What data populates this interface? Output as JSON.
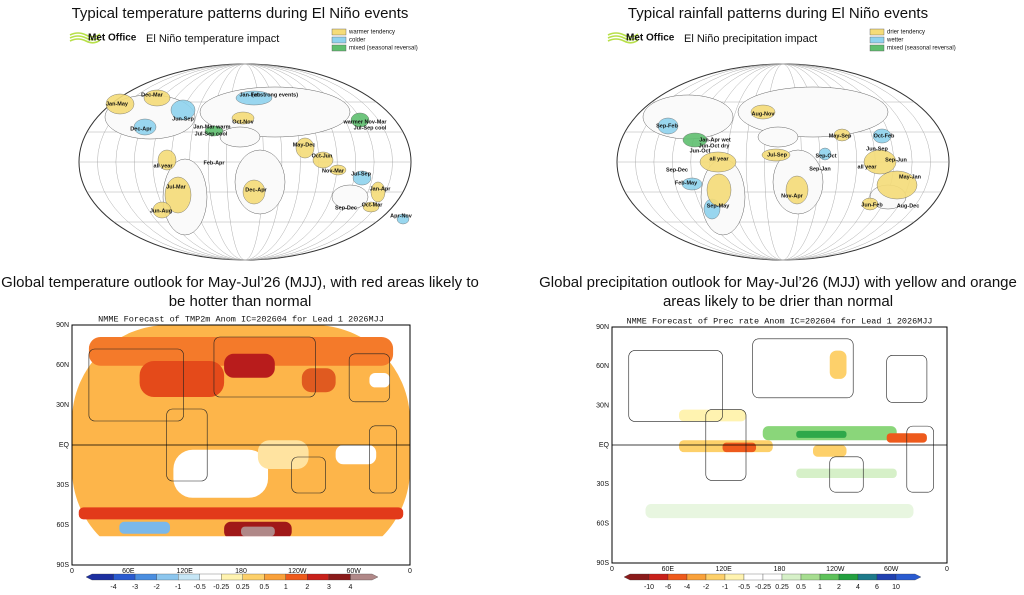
{
  "panels": [
    {
      "title": "Typical temperature patterns during El Niño events",
      "logo": "Met Office",
      "subtitle": "El Niño temperature impact",
      "legend": [
        "warmer tendency",
        "colder",
        "mixed (seasonal reversal)"
      ],
      "regions": [
        "Jan-May",
        "Dec-Mar",
        "Jun-Sep",
        "Dec-Apr",
        "Jan-Feb",
        "(at strong events)",
        "Oct-Nov",
        "Jan-Mar warm",
        "Jul-Sep cool",
        "warmer Nov-Mar",
        "Jul-Sep cool",
        "May-Dec",
        "Oct-Jun",
        "Nov-Mar",
        "Jul-Sep",
        "Feb-Apr",
        "all year",
        "Jul-Mar",
        "Dec-Apr",
        "Jun-Aug",
        "Jan-Apr",
        "Oct-Mar",
        "Sep-Dec",
        "Apr-Nov"
      ]
    },
    {
      "title": "Typical rainfall patterns during El Niño events",
      "logo": "Met Office",
      "subtitle": "El Niño precipitation impact",
      "legend": [
        "drier tendency",
        "wetter",
        "mixed (seasonal reversal)"
      ],
      "regions": [
        "Aug-Nov",
        "Sep-Feb",
        "Jan-Apr wet",
        "Jun-Oct dry",
        "Jun-Oct",
        "May-Sep",
        "Oct-Feb",
        "Jun-Sep",
        "all year",
        "Jul-Sep",
        "Sep-Jun",
        "Sep-Oct",
        "all year",
        "Sep-Dec",
        "Feb-May",
        "Sep-Jan",
        "May-Jan",
        "Nov-Apr",
        "Jun-Feb",
        "Aug-Dec",
        "Sep-May"
      ]
    },
    {
      "title_lines": [
        "Global temperature outlook for May-Jul’26 (MJJ), with red areas likely to",
        "be hotter than normal"
      ],
      "header": "NMME Forecast of TMP2m Anom IC=202604 for Lead 1 2026MJJ",
      "y_labels": [
        "90N",
        "60N",
        "30N",
        "EQ",
        "30S",
        "60S",
        "90S"
      ],
      "x_labels": [
        "0",
        "60E",
        "120E",
        "180",
        "120W",
        "60W",
        "0"
      ],
      "colorbar": [
        "-4",
        "-3",
        "-2",
        "-1",
        "-0.5",
        "-0.25",
        "0.25",
        "0.5",
        "1",
        "2",
        "3",
        "4"
      ]
    },
    {
      "title_lines": [
        "Global precipitation outlook for May-Jul’26 (MJJ) with yellow and orange",
        "areas likely to be drier than normal"
      ],
      "header": "NMME Forecast of Prec rate Anom IC=202604 for Lead 1 2026MJJ",
      "y_labels": [
        "90N",
        "60N",
        "30N",
        "EQ",
        "30S",
        "60S",
        "90S"
      ],
      "x_labels": [
        "0",
        "60E",
        "120E",
        "180",
        "120W",
        "60W",
        "0"
      ],
      "colorbar": [
        "-10",
        "-6",
        "-4",
        "-2",
        "-1",
        "-0.5",
        "-0.25",
        "0.25",
        "0.5",
        "1",
        "2",
        "4",
        "6",
        "10"
      ]
    }
  ]
}
